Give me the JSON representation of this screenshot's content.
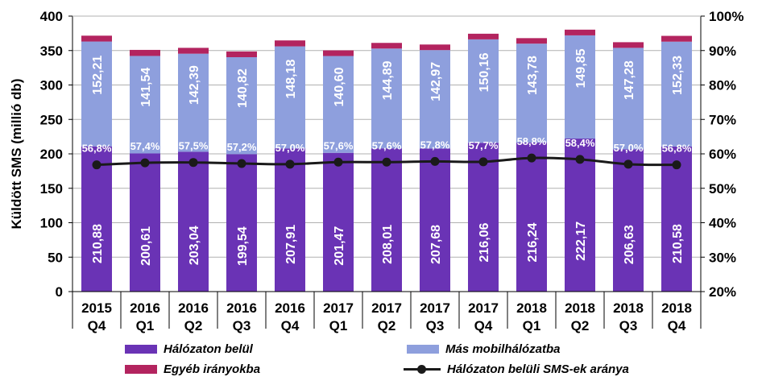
{
  "chart_data": {
    "type": "bar",
    "stacked": true,
    "ylabel": "Küldött SMS (millió db)",
    "ylim": [
      0,
      400
    ],
    "y_ticks": [
      "0",
      "50",
      "100",
      "150",
      "200",
      "250",
      "300",
      "350",
      "400"
    ],
    "y2lim": [
      20,
      100
    ],
    "y2_ticks": [
      "20%",
      "30%",
      "40%",
      "50%",
      "60%",
      "70%",
      "80%",
      "90%",
      "100%"
    ],
    "categories": [
      [
        "2015",
        "Q4"
      ],
      [
        "2016",
        "Q1"
      ],
      [
        "2016",
        "Q2"
      ],
      [
        "2016",
        "Q3"
      ],
      [
        "2016",
        "Q4"
      ],
      [
        "2017",
        "Q1"
      ],
      [
        "2017",
        "Q2"
      ],
      [
        "2017",
        "Q3"
      ],
      [
        "2017",
        "Q4"
      ],
      [
        "2018",
        "Q1"
      ],
      [
        "2018",
        "Q2"
      ],
      [
        "2018",
        "Q3"
      ],
      [
        "2018",
        "Q4"
      ]
    ],
    "series": [
      {
        "name": "Hálózaton belül",
        "color": "#6a33b5",
        "values": [
          210.88,
          200.61,
          203.04,
          199.54,
          207.91,
          201.47,
          208.01,
          207.68,
          216.06,
          216.24,
          222.17,
          206.63,
          210.58
        ],
        "labels": [
          "210,88",
          "200,61",
          "203,04",
          "199,54",
          "207,91",
          "201,47",
          "208,01",
          "207,68",
          "216,06",
          "216,24",
          "222,17",
          "206,63",
          "210,58"
        ]
      },
      {
        "name": "Más mobilhálózatba",
        "color": "#8e9fdd",
        "values": [
          152.21,
          141.54,
          142.39,
          140.82,
          148.18,
          140.6,
          144.89,
          142.97,
          150.16,
          143.78,
          149.85,
          147.28,
          152.33
        ],
        "labels": [
          "152,21",
          "141,54",
          "142,39",
          "140,82",
          "148,18",
          "140,60",
          "144,89",
          "142,97",
          "150,16",
          "143,78",
          "149,85",
          "147,28",
          "152,33"
        ]
      },
      {
        "name": "Egyéb irányokba",
        "color": "#b3245f",
        "values": [
          8.5,
          8.8,
          8.5,
          8.3,
          8.6,
          8.2,
          8.2,
          8.1,
          8.2,
          8.0,
          8.3,
          8.2,
          8.4
        ]
      },
      {
        "name": "Hálózaton belüli SMS-ek aránya",
        "type": "line",
        "axis": "right",
        "color": "#1a1a1a",
        "values": [
          56.8,
          57.4,
          57.5,
          57.2,
          57.0,
          57.6,
          57.6,
          57.8,
          57.7,
          58.8,
          58.4,
          57.0,
          56.8
        ],
        "labels": [
          "56,8%",
          "57,4%",
          "57,5%",
          "57,2%",
          "57,0%",
          "57,6%",
          "57,6%",
          "57,8%",
          "57,7%",
          "58,8%",
          "58,4%",
          "57,0%",
          "56,8%"
        ]
      }
    ],
    "legend": {
      "position": "bottom",
      "items": [
        {
          "label": "Hálózaton belül",
          "color": "#6a33b5",
          "kind": "bar"
        },
        {
          "label": "Más mobilhálózatba",
          "color": "#8e9fdd",
          "kind": "bar"
        },
        {
          "label": "Egyéb irányokba",
          "color": "#b3245f",
          "kind": "bar"
        },
        {
          "label": "Hálózaton belüli SMS-ek aránya",
          "color": "#1a1a1a",
          "kind": "line"
        }
      ]
    }
  }
}
